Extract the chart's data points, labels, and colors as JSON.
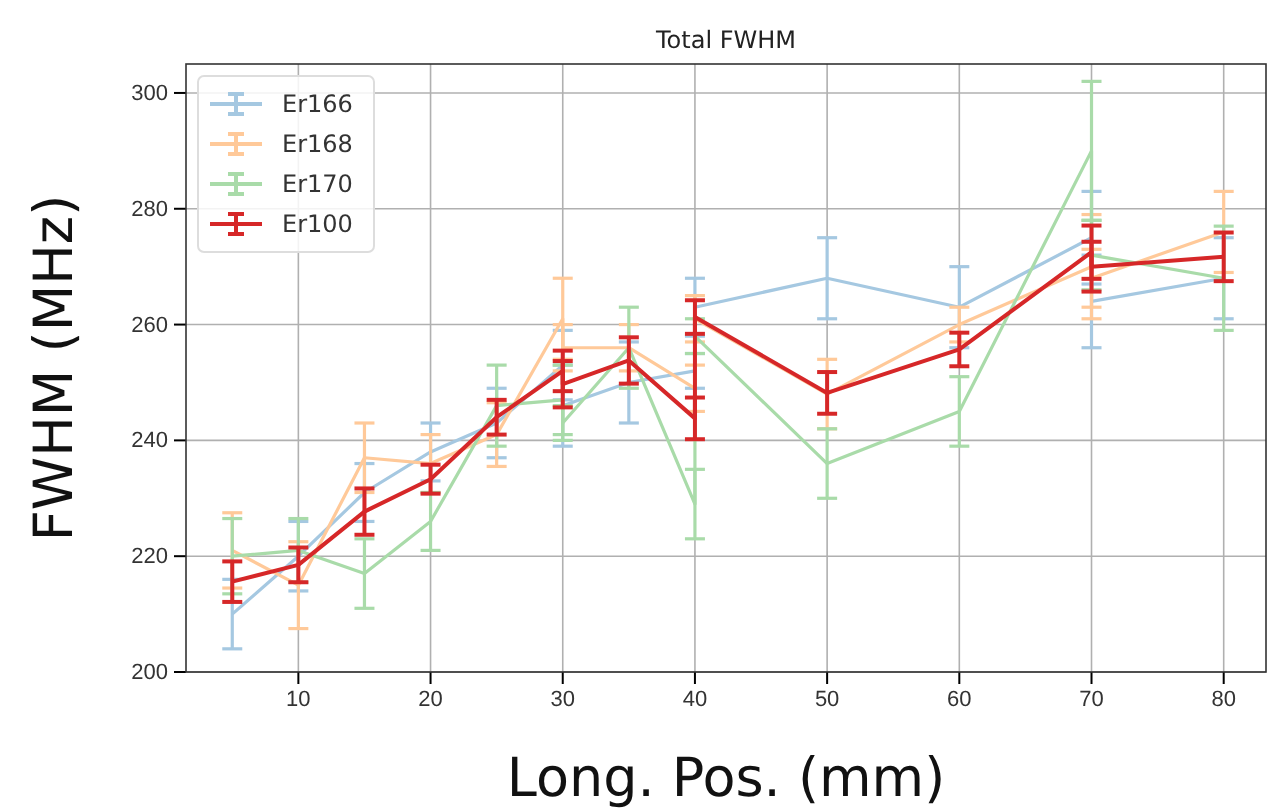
{
  "chart_data": {
    "type": "line",
    "title": "Total FWHM",
    "xlabel": "Long. Pos. (mm)",
    "ylabel": "FWHM (MHz)",
    "x": [
      5,
      10,
      15,
      20,
      25,
      30,
      30,
      35,
      40,
      40,
      50,
      60,
      70,
      70,
      80
    ],
    "xlim": [
      1.5,
      83.2
    ],
    "xticks": [
      10,
      20,
      30,
      40,
      50,
      60,
      70,
      80
    ],
    "ylim": [
      200,
      305
    ],
    "yticks": [
      200,
      220,
      240,
      260,
      280,
      300
    ],
    "grid": true,
    "legend": "top left",
    "marker": "none",
    "line_style": "solid",
    "series": [
      {
        "name": "Er166",
        "color": "#a5c8e1",
        "values": [
          210,
          220,
          231,
          238,
          243,
          253,
          246,
          250,
          252,
          263,
          268,
          263,
          275,
          264,
          268
        ],
        "errors": [
          6,
          6,
          5,
          5,
          6,
          6,
          7,
          7,
          3,
          5,
          7,
          7,
          8,
          8,
          7
        ]
      },
      {
        "name": "Er168",
        "color": "#ffc999",
        "values": [
          221,
          215,
          237,
          236,
          241,
          261,
          256,
          256,
          249,
          261,
          248,
          260,
          270,
          268,
          276
        ],
        "errors": [
          6.5,
          7.5,
          6,
          5,
          5.5,
          7,
          4,
          4,
          4,
          4,
          6,
          3,
          9,
          5,
          7
        ]
      },
      {
        "name": "Er170",
        "color": "#a9dba9",
        "values": [
          220,
          221,
          217,
          226,
          246,
          247,
          243,
          256,
          229,
          258,
          236,
          245,
          290,
          272,
          268
        ],
        "errors": [
          6.5,
          5.5,
          6,
          5,
          7,
          6,
          3,
          7,
          6,
          3,
          6,
          6,
          12,
          6,
          9
        ]
      },
      {
        "name": "Er100",
        "color": "#d62728",
        "values": [
          215.6,
          218.5,
          227.7,
          233.3,
          244,
          252,
          249.7,
          253.8,
          243.8,
          261.3,
          248.2,
          255.7,
          272.5,
          270,
          271.7
        ],
        "errors": [
          3.5,
          3,
          4,
          2.5,
          3,
          3.5,
          4,
          4,
          3.6,
          2.9,
          3.6,
          2.9,
          4.6,
          4.3,
          4.2
        ]
      }
    ]
  }
}
